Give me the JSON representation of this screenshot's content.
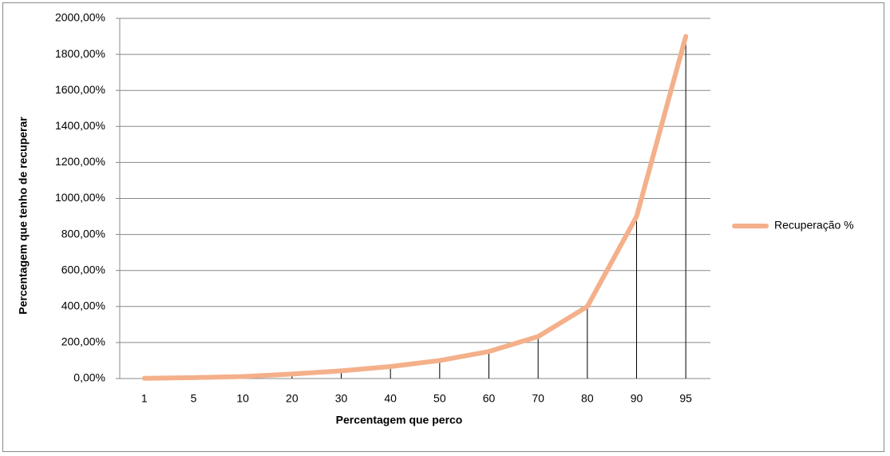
{
  "chart_data": {
    "type": "line",
    "x_label": "Percentagem que perco",
    "y_label": "Percentagem que tenho de recuperar",
    "categories": [
      "1",
      "5",
      "10",
      "20",
      "30",
      "40",
      "50",
      "60",
      "70",
      "80",
      "90",
      "95"
    ],
    "series": [
      {
        "name": "Recuperação %",
        "color": "#f4b08a",
        "values": [
          1.01,
          5.26,
          11.11,
          25,
          42.86,
          66.67,
          100,
          150,
          233.33,
          400,
          900,
          1900
        ]
      }
    ],
    "ylim": [
      0,
      2000
    ],
    "yticks": [
      {
        "value": 0,
        "label": "0,00%"
      },
      {
        "value": 200,
        "label": "200,00%"
      },
      {
        "value": 400,
        "label": "400,00%"
      },
      {
        "value": 600,
        "label": "600,00%"
      },
      {
        "value": 800,
        "label": "800,00%"
      },
      {
        "value": 1000,
        "label": "1000,00%"
      },
      {
        "value": 1200,
        "label": "1200,00%"
      },
      {
        "value": 1400,
        "label": "1400,00%"
      },
      {
        "value": 1600,
        "label": "1600,00%"
      },
      {
        "value": 1800,
        "label": "1800,00%"
      },
      {
        "value": 2000,
        "label": "2000,00%"
      }
    ],
    "grid": true,
    "drop_lines": true,
    "legend": "right"
  }
}
